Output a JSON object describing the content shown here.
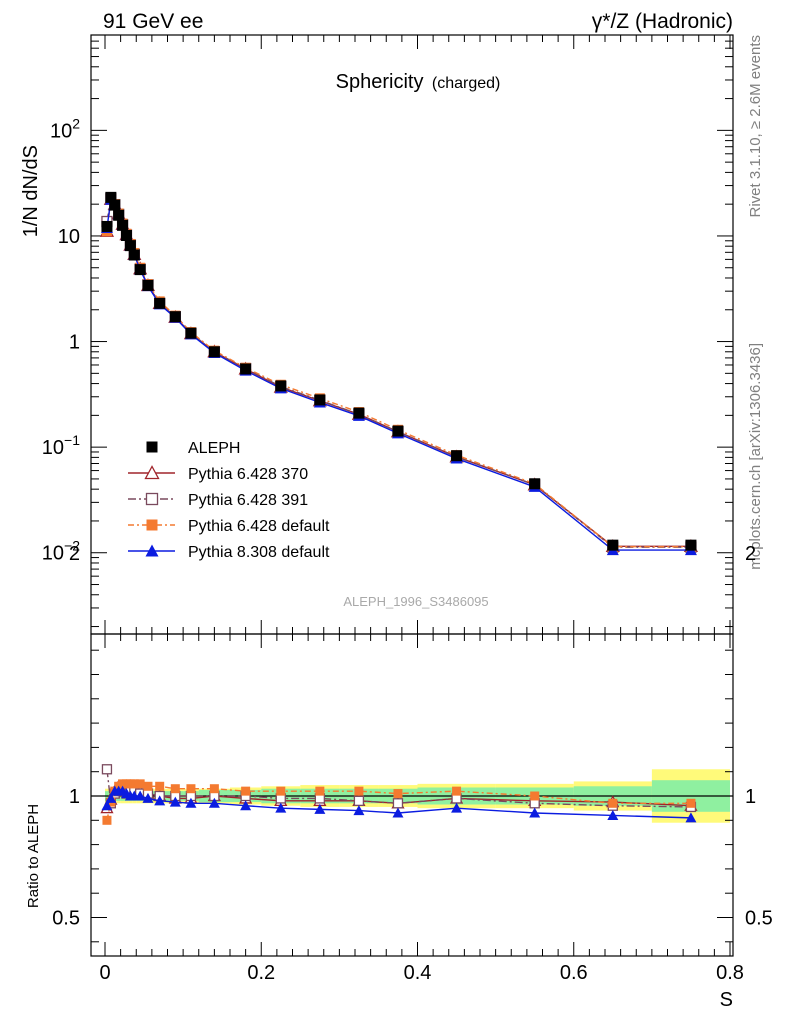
{
  "header": {
    "left": "91 GeV ee",
    "right_sym": "γ*/Z",
    "right_rest": " (Hadronic)"
  },
  "side_labels": {
    "rivet": "Rivet 3.1.10, ≥ 2.6M events",
    "mcplots": "mcplots.cern.ch [arXiv:1306.3436]"
  },
  "chart_data": {
    "type": "line",
    "title": "Sphericity",
    "subtitle": "(charged)",
    "analysis_id": "ALEPH_1996_S3486095",
    "ylabel": "1/N dN/dS",
    "ratio_ylabel": "Ratio to ALEPH",
    "xlabel": "S",
    "xlim": [
      0,
      0.8
    ],
    "ylim": [
      0.0017,
      800
    ],
    "yscale": "log",
    "ratio_ylim": [
      0.32,
      2.3
    ],
    "x_ticks": [
      "0",
      "0.2",
      "0.4",
      "0.6",
      "0.8"
    ],
    "y_ticks": [
      {
        "base": "10",
        "exp": "2",
        "v": 100
      },
      {
        "base": "10",
        "exp": "",
        "v": 10
      },
      {
        "base": "1",
        "exp": "",
        "v": 1
      },
      {
        "base": "10",
        "exp": "−1",
        "v": 0.1
      },
      {
        "base": "10",
        "exp": "−2",
        "v": 0.01
      }
    ],
    "ratio_ticks": [
      "2",
      "1",
      "0.5"
    ],
    "legend_position": "lower-left",
    "x": [
      0.0025,
      0.0075,
      0.0125,
      0.0175,
      0.0225,
      0.0275,
      0.0325,
      0.0375,
      0.045,
      0.055,
      0.07,
      0.09,
      0.11,
      0.14,
      0.18,
      0.225,
      0.275,
      0.325,
      0.375,
      0.45,
      0.55,
      0.65,
      0.75
    ],
    "bin_edges": [
      0,
      0.005,
      0.01,
      0.015,
      0.02,
      0.025,
      0.03,
      0.035,
      0.04,
      0.05,
      0.06,
      0.08,
      0.1,
      0.12,
      0.16,
      0.2,
      0.25,
      0.3,
      0.35,
      0.4,
      0.5,
      0.6,
      0.7,
      0.8
    ],
    "series": [
      {
        "name": "ALEPH",
        "color": "#000000",
        "marker": "square",
        "dash": "none",
        "values": [
          12.3,
          23.2,
          19.6,
          15.7,
          12.6,
          10.1,
          8.1,
          6.6,
          4.8,
          3.4,
          2.3,
          1.72,
          1.2,
          0.8,
          0.55,
          0.38,
          0.28,
          0.21,
          0.142,
          0.083,
          0.045,
          0.0118,
          0.0118
        ]
      },
      {
        "name": "Pythia 6.428 370",
        "color": "#a0252b",
        "marker": "triangle-open",
        "dash": "none",
        "values": [
          11.1,
          22.3,
          20.0,
          16.2,
          12.9,
          10.3,
          8.2,
          6.7,
          4.9,
          3.4,
          2.3,
          1.7,
          1.19,
          0.8,
          0.55,
          0.37,
          0.275,
          0.205,
          0.14,
          0.081,
          0.044,
          0.0115,
          0.0115
        ]
      },
      {
        "name": "Pythia 6.428 391",
        "color": "#7a4a5e",
        "marker": "square-open",
        "dash": "8,3,2,3",
        "values": [
          13.7,
          22.5,
          19.8,
          16.0,
          12.8,
          10.2,
          8.2,
          6.7,
          4.85,
          3.45,
          2.3,
          1.72,
          1.2,
          0.8,
          0.555,
          0.375,
          0.278,
          0.205,
          0.14,
          0.081,
          0.044,
          0.0113,
          0.0113
        ]
      },
      {
        "name": "Pythia 6.428 default",
        "color": "#f47a30",
        "marker": "square",
        "dash": "6,3,2,3",
        "values": [
          11.1,
          22.6,
          20.0,
          16.3,
          13.1,
          10.5,
          8.4,
          6.9,
          5.0,
          3.5,
          2.4,
          1.76,
          1.23,
          0.82,
          0.565,
          0.39,
          0.29,
          0.215,
          0.146,
          0.084,
          0.045,
          0.0114,
          0.0114
        ]
      },
      {
        "name": "Pythia 8.308 default",
        "color": "#0b1ce0",
        "marker": "triangle",
        "dash": "none",
        "values": [
          11.9,
          22.0,
          20.0,
          16.0,
          12.8,
          10.2,
          8.1,
          6.6,
          4.8,
          3.35,
          2.25,
          1.68,
          1.17,
          0.78,
          0.53,
          0.36,
          0.265,
          0.198,
          0.135,
          0.078,
          0.042,
          0.0106,
          0.0106
        ]
      }
    ],
    "ratios": {
      "Pythia 6.428 370": [
        0.95,
        0.985,
        1.02,
        1.04,
        1.04,
        1.03,
        1.02,
        1.02,
        1.02,
        1.01,
        1.0,
        0.99,
        0.99,
        1.0,
        0.99,
        0.98,
        0.98,
        0.98,
        0.97,
        0.99,
        0.98,
        0.975,
        0.96
      ],
      "Pythia 6.428 391": [
        1.11,
        0.97,
        1.01,
        1.02,
        1.02,
        1.01,
        1.02,
        1.02,
        1.01,
        1.01,
        1.0,
        1.0,
        1.0,
        1.0,
        1.0,
        0.99,
        0.99,
        0.98,
        0.97,
        0.99,
        0.97,
        0.96,
        0.955
      ],
      "Pythia 6.428 default": [
        0.9,
        0.975,
        1.02,
        1.04,
        1.05,
        1.05,
        1.05,
        1.05,
        1.05,
        1.04,
        1.04,
        1.03,
        1.03,
        1.03,
        1.02,
        1.02,
        1.02,
        1.02,
        1.01,
        1.02,
        1.0,
        0.97,
        0.97
      ],
      "Pythia 8.308 default": [
        0.96,
        0.99,
        1.02,
        1.02,
        1.02,
        1.01,
        1.0,
        1.0,
        1.0,
        0.99,
        0.98,
        0.975,
        0.97,
        0.97,
        0.96,
        0.95,
        0.945,
        0.94,
        0.93,
        0.95,
        0.93,
        0.92,
        0.91
      ]
    },
    "data_band_halfwidth": {
      "yellow": [
        0.03,
        0.03,
        0.03,
        0.03,
        0.03,
        0.03,
        0.03,
        0.03,
        0.03,
        0.03,
        0.03,
        0.03,
        0.03,
        0.03,
        0.035,
        0.04,
        0.045,
        0.045,
        0.045,
        0.05,
        0.05,
        0.06,
        0.11
      ],
      "green": [
        0.02,
        0.02,
        0.02,
        0.02,
        0.02,
        0.02,
        0.02,
        0.02,
        0.02,
        0.02,
        0.02,
        0.02,
        0.02,
        0.025,
        0.025,
        0.03,
        0.03,
        0.03,
        0.03,
        0.035,
        0.035,
        0.04,
        0.065
      ]
    }
  }
}
